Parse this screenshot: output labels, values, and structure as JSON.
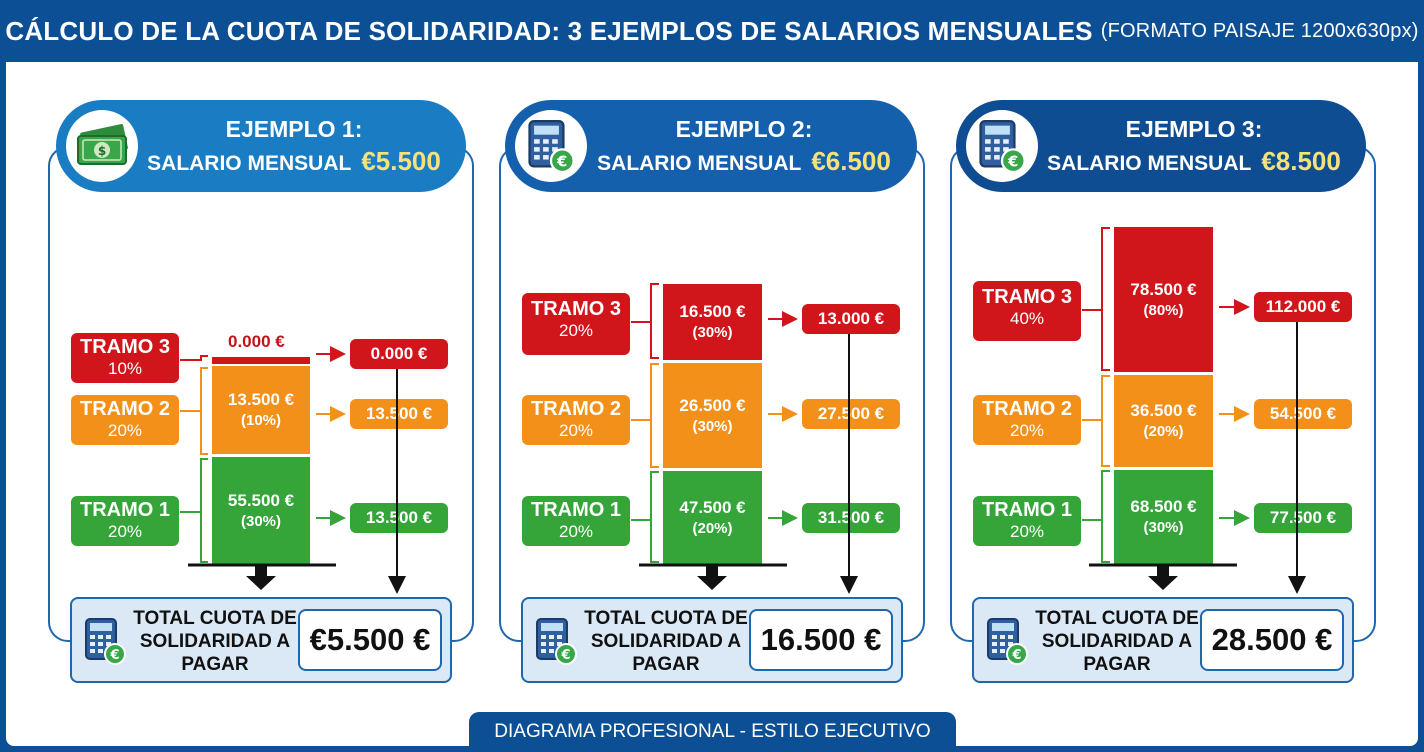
{
  "header": {
    "title": "CÁLCULO DE LA CUOTA DE SOLIDARIDAD: 3 EJEMPLOS DE SALARIOS MENSUALES",
    "subtitle": "(FORMATO PAISAJE 1200x630px)"
  },
  "examples": [
    {
      "title": "EJEMPLO 1:",
      "salary_label": "SALARIO MENSUAL",
      "salary": "€5.500",
      "icon": "money-icon",
      "tramos": [
        {
          "name": "TRAMO 3",
          "pct": "10%",
          "seg_value": "0.000 €",
          "seg_pct": "",
          "result": "0.000 €"
        },
        {
          "name": "TRAMO 2",
          "pct": "20%",
          "seg_value": "13.500 €",
          "seg_pct": "(10%)",
          "result": "13.500 €"
        },
        {
          "name": "TRAMO 1",
          "pct": "20%",
          "seg_value": "55.500 €",
          "seg_pct": "(30%)",
          "result": "13.500 €"
        }
      ],
      "total_label": "TOTAL CUOTA DE SOLIDARIDAD A PAGAR",
      "total": "€5.500 €"
    },
    {
      "title": "EJEMPLO 2:",
      "salary_label": "SALARIO MENSUAL",
      "salary": "€6.500",
      "icon": "calculator-icon",
      "tramos": [
        {
          "name": "TRAMO 3",
          "pct": "20%",
          "seg_value": "16.500 €",
          "seg_pct": "(30%)",
          "result": "13.000 €"
        },
        {
          "name": "TRAMO 2",
          "pct": "20%",
          "seg_value": "26.500 €",
          "seg_pct": "(30%)",
          "result": "27.500 €"
        },
        {
          "name": "TRAMO 1",
          "pct": "20%",
          "seg_value": "47.500 €",
          "seg_pct": "(20%)",
          "result": "31.500 €"
        }
      ],
      "total_label": "TOTAL CUOTA DE SOLIDARIDAD A PAGAR",
      "total": "16.500 €"
    },
    {
      "title": "EJEMPLO 3:",
      "salary_label": "SALARIO MENSUAL",
      "salary": "€8.500",
      "icon": "calculator-icon",
      "tramos": [
        {
          "name": "TRAMO 3",
          "pct": "40%",
          "seg_value": "78.500 €",
          "seg_pct": "(80%)",
          "result": "112.000 €"
        },
        {
          "name": "TRAMO 2",
          "pct": "20%",
          "seg_value": "36.500 €",
          "seg_pct": "(20%)",
          "result": "54.500 €"
        },
        {
          "name": "TRAMO 1",
          "pct": "20%",
          "seg_value": "68.500 €",
          "seg_pct": "(30%)",
          "result": "77.500 €"
        }
      ],
      "total_label": "TOTAL CUOTA DE SOLIDARIDAD A PAGAR",
      "total": "28.500 €"
    }
  ],
  "footer": "DIAGRAMA PROFESIONAL - ESTILO EJECUTIVO",
  "colors": {
    "frame": "#0d4f94",
    "tramo3": "#d0151b",
    "tramo2": "#f39019",
    "tramo1": "#35a53a",
    "salary_amount": "#f6e27a"
  }
}
